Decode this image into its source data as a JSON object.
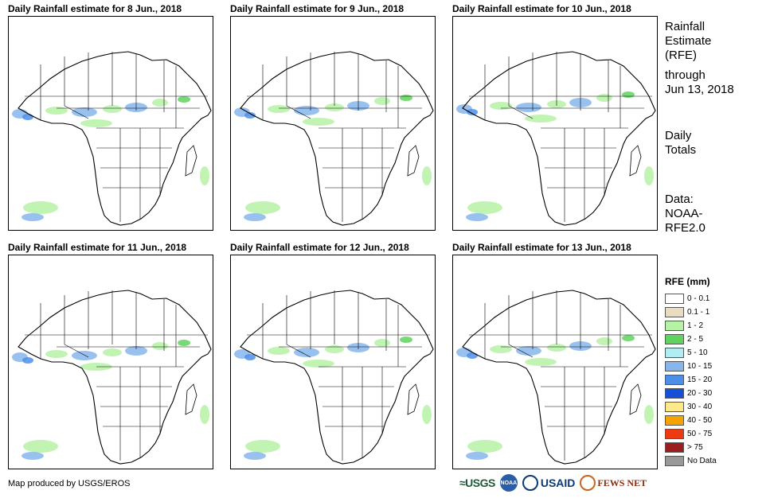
{
  "panels": [
    {
      "title": "Daily Rainfall estimate for 8 Jun., 2018"
    },
    {
      "title": "Daily Rainfall estimate for 9 Jun., 2018"
    },
    {
      "title": "Daily Rainfall estimate for 10 Jun., 2018"
    },
    {
      "title": "Daily Rainfall estimate for 11 Jun., 2018"
    },
    {
      "title": "Daily Rainfall estimate for 12 Jun., 2018"
    },
    {
      "title": "Daily Rainfall estimate for 13 Jun., 2018"
    }
  ],
  "side": {
    "heading": [
      "Rainfall",
      "Estimate",
      "(RFE)"
    ],
    "through": [
      "through",
      "Jun 13, 2018"
    ],
    "totals": [
      "Daily",
      "Totals"
    ],
    "data_source": [
      "Data:",
      "NOAA-",
      "RFE2.0"
    ]
  },
  "legend": {
    "title": "RFE (mm)",
    "items": [
      {
        "label": "0 - 0.1",
        "color": "#ffffff"
      },
      {
        "label": "0.1 - 1",
        "color": "#e9dcc0"
      },
      {
        "label": "1 - 2",
        "color": "#b6f2a4"
      },
      {
        "label": "2 - 5",
        "color": "#5fd35f"
      },
      {
        "label": "5 - 10",
        "color": "#b0eef4"
      },
      {
        "label": "10 - 15",
        "color": "#86b6ec"
      },
      {
        "label": "15 - 20",
        "color": "#4d8fe8"
      },
      {
        "label": "20 - 30",
        "color": "#1650d8"
      },
      {
        "label": "30 - 40",
        "color": "#fde98c"
      },
      {
        "label": "40 - 50",
        "color": "#f5a300"
      },
      {
        "label": "50 - 75",
        "color": "#ee3a12"
      },
      {
        "label": "> 75",
        "color": "#9a1e1e"
      },
      {
        "label": "No Data",
        "color": "#999999"
      }
    ]
  },
  "credit": "Map produced by USGS/EROS",
  "logos": {
    "usgs": "≈USGS",
    "noaa": "NOAA",
    "usaid": "USAID",
    "fews": "FEWS NET"
  }
}
